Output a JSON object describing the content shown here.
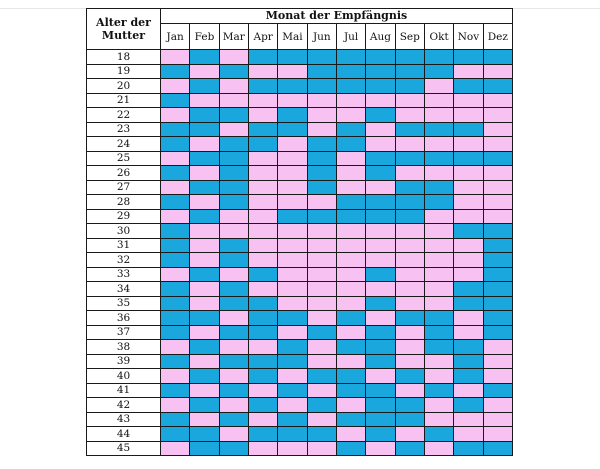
{
  "corner_label": "Alter der Mutter",
  "months_title": "Monat der Empfängnis",
  "months": [
    "Jan",
    "Feb",
    "Mar",
    "Apr",
    "Mai",
    "Jun",
    "Jul",
    "Aug",
    "Sep",
    "Okt",
    "Nov",
    "Dez"
  ],
  "colors": {
    "boy": "#1aa7dd",
    "girl": "#f7c2f2"
  },
  "chart_data": {
    "type": "table",
    "title": "Monat der Empfängnis",
    "row_header": "Alter der Mutter",
    "columns": [
      "Jan",
      "Feb",
      "Mar",
      "Apr",
      "Mai",
      "Jun",
      "Jul",
      "Aug",
      "Sep",
      "Okt",
      "Nov",
      "Dez"
    ],
    "legend": {
      "B": "blue",
      "G": "pink"
    },
    "rows": [
      {
        "age": "18",
        "cells": [
          "G",
          "B",
          "G",
          "B",
          "B",
          "B",
          "B",
          "B",
          "B",
          "B",
          "B",
          "B"
        ]
      },
      {
        "age": "19",
        "cells": [
          "B",
          "G",
          "B",
          "G",
          "G",
          "B",
          "B",
          "B",
          "B",
          "B",
          "G",
          "G"
        ]
      },
      {
        "age": "20",
        "cells": [
          "G",
          "B",
          "G",
          "B",
          "B",
          "B",
          "B",
          "B",
          "B",
          "G",
          "B",
          "B"
        ]
      },
      {
        "age": "21",
        "cells": [
          "B",
          "G",
          "G",
          "G",
          "G",
          "G",
          "G",
          "G",
          "G",
          "G",
          "G",
          "G"
        ]
      },
      {
        "age": "22",
        "cells": [
          "G",
          "B",
          "B",
          "G",
          "B",
          "G",
          "G",
          "B",
          "G",
          "G",
          "G",
          "G"
        ]
      },
      {
        "age": "23",
        "cells": [
          "B",
          "B",
          "G",
          "B",
          "B",
          "G",
          "B",
          "G",
          "B",
          "B",
          "B",
          "G"
        ]
      },
      {
        "age": "24",
        "cells": [
          "B",
          "G",
          "B",
          "B",
          "G",
          "B",
          "B",
          "G",
          "G",
          "G",
          "G",
          "G"
        ]
      },
      {
        "age": "25",
        "cells": [
          "G",
          "B",
          "B",
          "G",
          "G",
          "B",
          "G",
          "B",
          "B",
          "B",
          "B",
          "B"
        ]
      },
      {
        "age": "26",
        "cells": [
          "B",
          "G",
          "B",
          "G",
          "G",
          "B",
          "G",
          "B",
          "G",
          "G",
          "G",
          "G"
        ]
      },
      {
        "age": "27",
        "cells": [
          "G",
          "B",
          "B",
          "G",
          "G",
          "B",
          "G",
          "G",
          "B",
          "B",
          "G",
          "G"
        ]
      },
      {
        "age": "28",
        "cells": [
          "B",
          "G",
          "B",
          "G",
          "G",
          "G",
          "B",
          "B",
          "B",
          "B",
          "G",
          "G"
        ]
      },
      {
        "age": "29",
        "cells": [
          "G",
          "B",
          "G",
          "G",
          "B",
          "B",
          "B",
          "B",
          "B",
          "G",
          "G",
          "G"
        ]
      },
      {
        "age": "30",
        "cells": [
          "B",
          "G",
          "G",
          "G",
          "G",
          "G",
          "G",
          "G",
          "G",
          "G",
          "B",
          "B"
        ]
      },
      {
        "age": "31",
        "cells": [
          "B",
          "G",
          "B",
          "G",
          "G",
          "G",
          "G",
          "G",
          "G",
          "G",
          "G",
          "B"
        ]
      },
      {
        "age": "32",
        "cells": [
          "B",
          "G",
          "B",
          "G",
          "G",
          "G",
          "G",
          "G",
          "G",
          "G",
          "G",
          "B"
        ]
      },
      {
        "age": "33",
        "cells": [
          "G",
          "B",
          "G",
          "B",
          "G",
          "G",
          "G",
          "B",
          "G",
          "G",
          "G",
          "B"
        ]
      },
      {
        "age": "34",
        "cells": [
          "B",
          "G",
          "B",
          "G",
          "G",
          "G",
          "G",
          "G",
          "G",
          "G",
          "B",
          "B"
        ]
      },
      {
        "age": "35",
        "cells": [
          "B",
          "G",
          "B",
          "B",
          "G",
          "G",
          "G",
          "B",
          "G",
          "G",
          "B",
          "B"
        ]
      },
      {
        "age": "36",
        "cells": [
          "B",
          "B",
          "G",
          "B",
          "B",
          "G",
          "B",
          "G",
          "B",
          "B",
          "G",
          "B"
        ]
      },
      {
        "age": "37",
        "cells": [
          "B",
          "G",
          "B",
          "B",
          "G",
          "B",
          "G",
          "B",
          "G",
          "B",
          "G",
          "B"
        ]
      },
      {
        "age": "38",
        "cells": [
          "G",
          "B",
          "G",
          "G",
          "B",
          "G",
          "B",
          "B",
          "G",
          "B",
          "B",
          "G"
        ]
      },
      {
        "age": "39",
        "cells": [
          "B",
          "G",
          "B",
          "B",
          "B",
          "G",
          "G",
          "B",
          "G",
          "G",
          "B",
          "G"
        ]
      },
      {
        "age": "40",
        "cells": [
          "G",
          "B",
          "G",
          "B",
          "G",
          "B",
          "B",
          "G",
          "B",
          "G",
          "B",
          "G"
        ]
      },
      {
        "age": "41",
        "cells": [
          "B",
          "G",
          "B",
          "G",
          "B",
          "G",
          "B",
          "B",
          "G",
          "B",
          "G",
          "B"
        ]
      },
      {
        "age": "42",
        "cells": [
          "G",
          "B",
          "G",
          "B",
          "G",
          "B",
          "G",
          "B",
          "B",
          "G",
          "B",
          "G"
        ]
      },
      {
        "age": "43",
        "cells": [
          "B",
          "G",
          "B",
          "G",
          "B",
          "G",
          "B",
          "B",
          "B",
          "G",
          "G",
          "G"
        ]
      },
      {
        "age": "44",
        "cells": [
          "B",
          "B",
          "G",
          "B",
          "B",
          "B",
          "G",
          "B",
          "G",
          "B",
          "G",
          "G"
        ]
      },
      {
        "age": "45",
        "cells": [
          "G",
          "B",
          "B",
          "G",
          "G",
          "G",
          "B",
          "G",
          "B",
          "G",
          "B",
          "B"
        ]
      }
    ]
  }
}
